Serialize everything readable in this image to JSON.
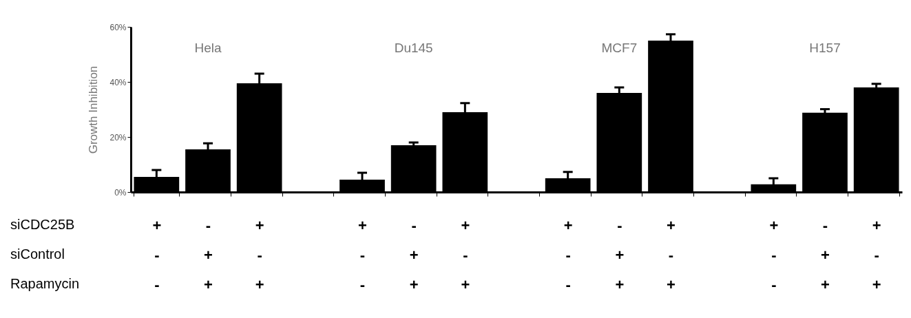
{
  "chart_data": {
    "type": "bar",
    "ylabel": "Growth Inhibition",
    "color": "#000000",
    "categories": [
      "+\n-\n-",
      "-\n+\n+",
      "+\n-\n+",
      null,
      "+\n-\n-",
      "-\n+\n+",
      "+\n-\n+",
      null,
      "+\n-\n-",
      "-\n+\n+",
      "+\n-\n+",
      null,
      "+\n-\n-",
      "-\n+\n+",
      "+\n-\n+"
    ],
    "values": [
      5.5,
      15.5,
      39.5,
      null,
      4.5,
      17,
      29,
      null,
      5,
      36,
      55,
      null,
      2.8,
      28.8,
      38
    ],
    "errors": [
      2.5,
      2.2,
      3.5,
      null,
      2.5,
      1,
      3.3,
      null,
      2.3,
      2,
      2.3,
      null,
      2.2,
      1.3,
      1.3
    ],
    "ylim": [
      0,
      60
    ],
    "yticks": [
      {
        "value": 0,
        "label": "0%"
      },
      {
        "value": 20,
        "label": "20%"
      },
      {
        "value": 40,
        "label": "40%"
      },
      {
        "value": 60,
        "label": "60%"
      }
    ],
    "annotations": [
      "Hela",
      "Du145",
      "MCF7",
      "H157",
      "siCDC25B",
      "siControl",
      "Rapamycin"
    ]
  }
}
